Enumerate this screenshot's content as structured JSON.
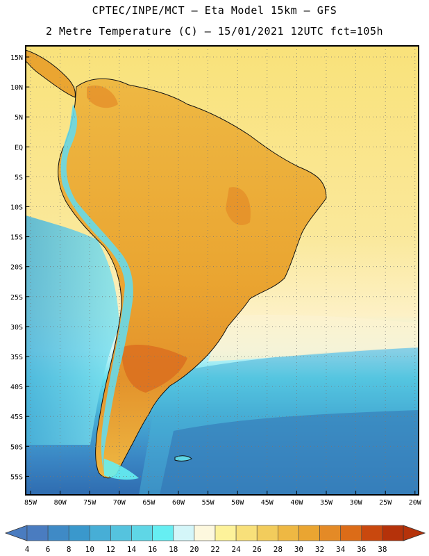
{
  "header": {
    "line1": "CPTEC/INPE/MCT –  Eta Model 15km – GFS",
    "line2": "2 Metre Temperature (C) – 15/01/2021 12UTC fct=105h"
  },
  "latitude_labels": [
    "15N",
    "10N",
    "5N",
    "EQ",
    "5S",
    "10S",
    "15S",
    "20S",
    "25S",
    "30S",
    "35S",
    "40S",
    "45S",
    "50S",
    "55S"
  ],
  "longitude_labels": [
    "85W",
    "80W",
    "75W",
    "70W",
    "65W",
    "60W",
    "55W",
    "50W",
    "45W",
    "40W",
    "35W",
    "30W",
    "25W",
    "20W"
  ],
  "legend": {
    "values": [
      "4",
      "6",
      "8",
      "10",
      "12",
      "14",
      "16",
      "18",
      "20",
      "22",
      "24",
      "26",
      "28",
      "30",
      "32",
      "34",
      "36",
      "38"
    ],
    "colors": [
      "#4a7cc0",
      "#3f8ac6",
      "#3a98cc",
      "#47aed6",
      "#55c3de",
      "#5fd6e6",
      "#66eef2",
      "#d4f6f9",
      "#fdf8de",
      "#fdf29a",
      "#f8e07a",
      "#f2cc5c",
      "#eeb843",
      "#eaa531",
      "#e48a26",
      "#dc6c18",
      "#c9480e",
      "#b5320a"
    ]
  },
  "colors": {
    "ocean_mid": "#f7e48a",
    "land_warm": "#eeb843",
    "land_hot": "#e48a26",
    "andes_cold": "#5fd6e6",
    "ocean_cold": "#3f8ac6"
  }
}
